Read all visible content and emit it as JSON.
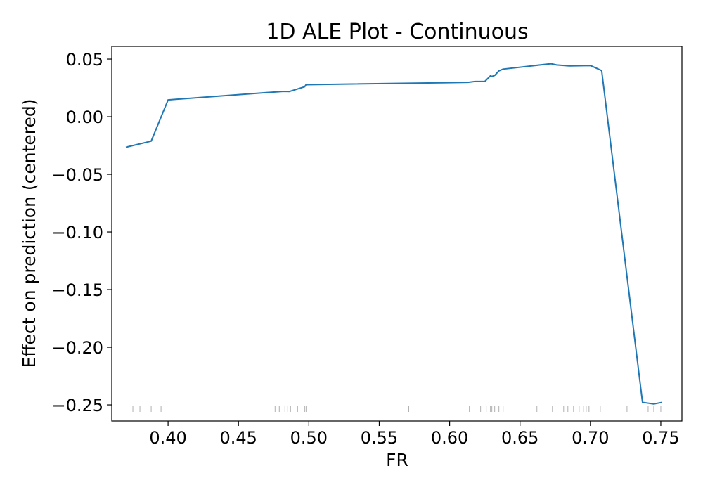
{
  "chart_data": {
    "type": "line",
    "title": "1D ALE Plot - Continuous",
    "xlabel": "FR",
    "ylabel": "Effect on prediction (centered)",
    "xlim": [
      0.36,
      0.765
    ],
    "ylim": [
      -0.264,
      0.061
    ],
    "x_ticks": [
      0.4,
      0.45,
      0.5,
      0.55,
      0.6,
      0.65,
      0.7,
      0.75
    ],
    "x_tick_labels": [
      "0.40",
      "0.45",
      "0.50",
      "0.55",
      "0.60",
      "0.65",
      "0.70",
      "0.75"
    ],
    "y_ticks": [
      0.05,
      0.0,
      -0.05,
      -0.1,
      -0.15,
      -0.2,
      -0.25
    ],
    "y_tick_labels": [
      "0.05",
      "0.00",
      "−0.05",
      "−0.10",
      "−0.15",
      "−0.20",
      "−0.25"
    ],
    "grid": false,
    "legend": false,
    "series": [
      {
        "color": "#1f77b4",
        "x": [
          0.37,
          0.388,
          0.4,
          0.482,
          0.486,
          0.497,
          0.498,
          0.613,
          0.618,
          0.625,
          0.629,
          0.63,
          0.632,
          0.635,
          0.638,
          0.672,
          0.676,
          0.685,
          0.7,
          0.708,
          0.737,
          0.745,
          0.751
        ],
        "y": [
          -0.0265,
          -0.0212,
          0.0146,
          0.022,
          0.0218,
          0.026,
          0.0278,
          0.0298,
          0.0306,
          0.0306,
          0.0355,
          0.035,
          0.0358,
          0.0398,
          0.0413,
          0.046,
          0.0449,
          0.0441,
          0.0444,
          0.04,
          -0.2478,
          -0.2492,
          -0.2478
        ]
      }
    ],
    "rug": {
      "color": "#b0b0b0",
      "x": [
        0.375,
        0.38,
        0.388,
        0.395,
        0.476,
        0.479,
        0.483,
        0.485,
        0.487,
        0.492,
        0.497,
        0.498,
        0.571,
        0.614,
        0.622,
        0.626,
        0.629,
        0.63,
        0.632,
        0.635,
        0.638,
        0.662,
        0.673,
        0.681,
        0.684,
        0.688,
        0.692,
        0.695,
        0.697,
        0.699,
        0.707,
        0.726,
        0.741,
        0.745,
        0.75
      ]
    }
  }
}
